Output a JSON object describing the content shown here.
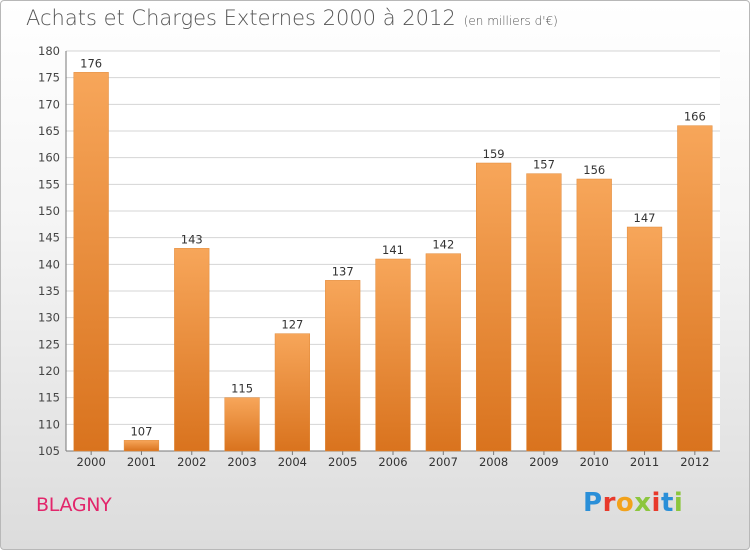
{
  "header": {
    "title": "Achats et Charges Externes 2000 à 2012",
    "subtitle": "(en milliers d'€)"
  },
  "footer": {
    "city": "BLAGNY",
    "logo": "Proxiti"
  },
  "colors": {
    "bar_light": "#f7a65a",
    "bar_dark": "#d9731e",
    "grid": "#d4d4d4",
    "city": "#e2266b"
  },
  "chart_data": {
    "type": "bar",
    "title": "Achats et Charges Externes 2000 à 2012",
    "subtitle": "(en milliers d'€)",
    "xlabel": "",
    "ylabel": "",
    "categories": [
      "2000",
      "2001",
      "2002",
      "2003",
      "2004",
      "2005",
      "2006",
      "2007",
      "2008",
      "2009",
      "2010",
      "2011",
      "2012"
    ],
    "values": [
      176,
      107,
      143,
      115,
      127,
      137,
      141,
      142,
      159,
      157,
      156,
      147,
      166
    ],
    "ylim": [
      105,
      180
    ],
    "yticks": [
      105,
      110,
      115,
      120,
      125,
      130,
      135,
      140,
      145,
      150,
      155,
      160,
      165,
      170,
      175,
      180
    ],
    "grid": true,
    "data_labels": true
  }
}
